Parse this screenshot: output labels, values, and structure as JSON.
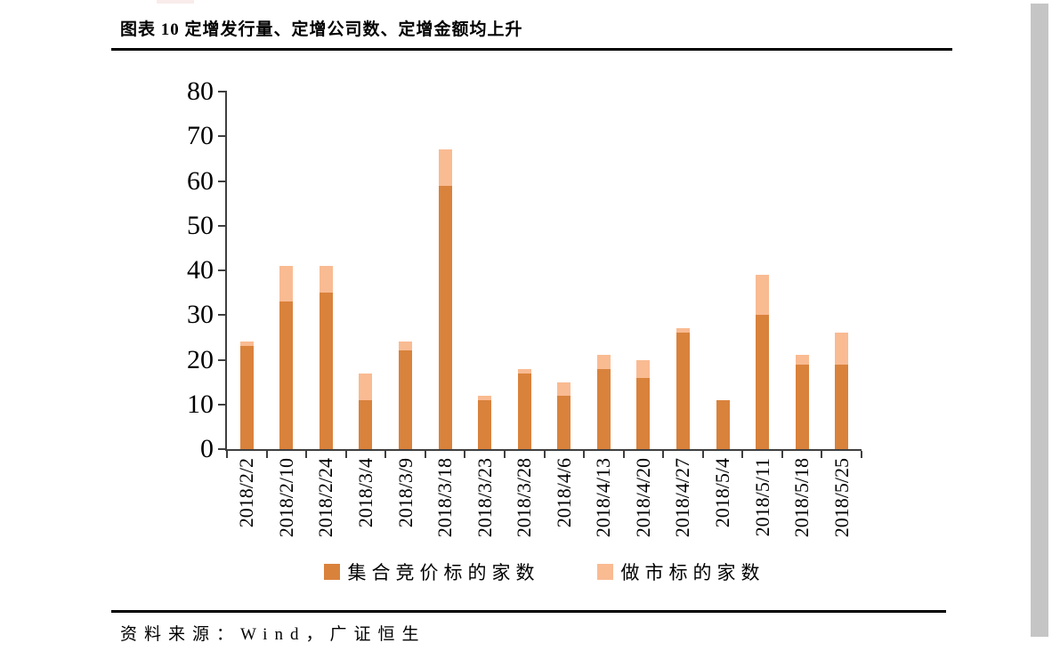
{
  "header": {
    "title": "图表 10 定增发行量、定增公司数、定增金额均上升"
  },
  "footer": {
    "source": "资料来源：Wind，广证恒生"
  },
  "colors": {
    "axis": "#3f3f3f",
    "rule": "#000000",
    "scrollbar": "#c5c5c5"
  },
  "chart_data": {
    "type": "bar",
    "stacked": true,
    "title": "",
    "xlabel": "",
    "ylabel": "",
    "categories": [
      "2018/2/2",
      "2018/2/10",
      "2018/2/24",
      "2018/3/4",
      "2018/3/9",
      "2018/3/18",
      "2018/3/23",
      "2018/3/28",
      "2018/4/6",
      "2018/4/13",
      "2018/4/20",
      "2018/4/27",
      "2018/5/4",
      "2018/5/11",
      "2018/5/18",
      "2018/5/25"
    ],
    "series": [
      {
        "name": "集合竞价标的家数",
        "color": "#d9823c",
        "values": [
          23,
          33,
          35,
          11,
          22,
          59,
          11,
          17,
          12,
          18,
          16,
          26,
          11,
          30,
          19,
          19
        ]
      },
      {
        "name": "做市标的家数",
        "color": "#f9bb92",
        "values": [
          1,
          8,
          6,
          6,
          2,
          8,
          1,
          1,
          3,
          3,
          4,
          1,
          0,
          9,
          2,
          7
        ]
      }
    ],
    "totals": [
      24,
      41,
      41,
      17,
      24,
      67,
      12,
      18,
      15,
      21,
      20,
      27,
      11,
      39,
      21,
      26
    ],
    "ylim": [
      0,
      80
    ],
    "ytick_step": 10,
    "yticks": [
      0,
      10,
      20,
      30,
      40,
      50,
      60,
      70,
      80
    ],
    "grid": false,
    "legend_position": "bottom"
  }
}
